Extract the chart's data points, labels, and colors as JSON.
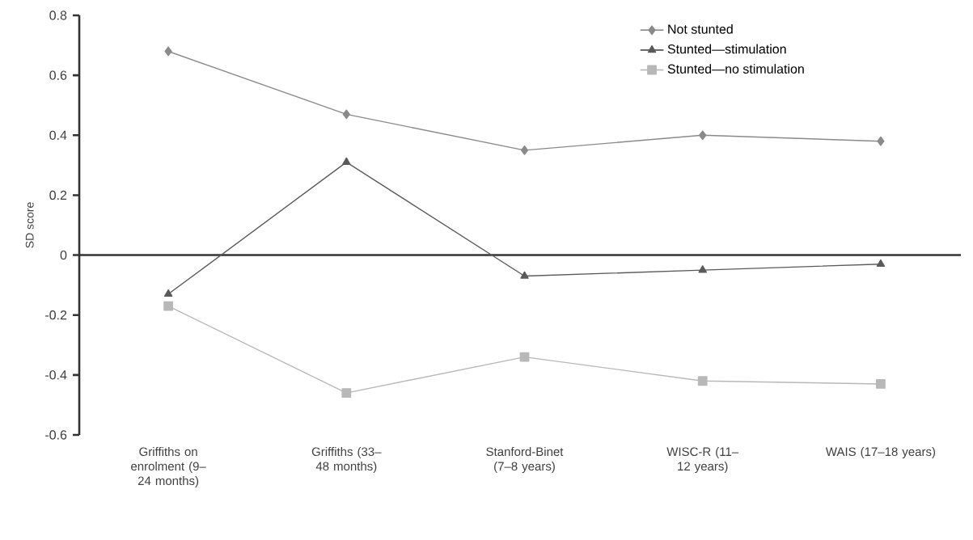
{
  "chart_data": {
    "type": "line",
    "ylabel": "SD score",
    "categories": [
      "Griffiths on enrolment (9–24 months)",
      "Griffiths (33–48 months)",
      "Stanford-Binet (7–8 years)",
      "WISC-R (11–12 years)",
      "WAIS (17–18 years)"
    ],
    "series": [
      {
        "name": "Not stunted",
        "color": "#8a8a8a",
        "marker": "diamond",
        "values": [
          0.68,
          0.47,
          0.35,
          0.4,
          0.38
        ]
      },
      {
        "name": "Stunted—stimulation",
        "color": "#5a5a5a",
        "marker": "triangle",
        "values": [
          -0.13,
          0.31,
          -0.07,
          -0.05,
          -0.03
        ]
      },
      {
        "name": "Stunted—no stimulation",
        "color": "#b8b8b8",
        "marker": "square",
        "values": [
          -0.17,
          -0.46,
          -0.34,
          -0.42,
          -0.43
        ]
      }
    ],
    "ylim": [
      -0.6,
      0.8
    ],
    "yticks": [
      -0.6,
      -0.4,
      -0.2,
      0,
      0.2,
      0.4,
      0.6,
      0.8
    ],
    "ref_lines": [
      {
        "axis": "y",
        "value": 0,
        "color": "#333333"
      }
    ],
    "legend": "top right",
    "grid": false,
    "line_style": "solid"
  }
}
